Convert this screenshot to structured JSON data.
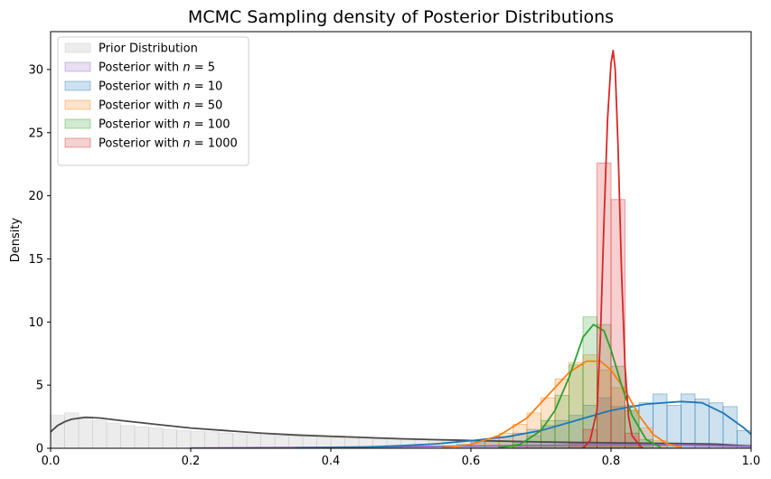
{
  "chart_data": {
    "type": "histogram",
    "title": "MCMC Sampling density of Posterior Distributions",
    "xlabel": "",
    "ylabel": "Density",
    "xlim": [
      0,
      1
    ],
    "ylim": [
      0,
      33
    ],
    "xticks": [
      0.0,
      0.2,
      0.4,
      0.6,
      0.8,
      1.0
    ],
    "xtick_labels": [
      "0.0",
      "0.2",
      "0.4",
      "0.6",
      "0.8",
      "1.0"
    ],
    "yticks": [
      0,
      5,
      10,
      15,
      20,
      25,
      30
    ],
    "ytick_labels": [
      "0",
      "5",
      "10",
      "15",
      "20",
      "25",
      "30"
    ],
    "grid": false,
    "legend_position": "top-left",
    "series": [
      {
        "name": "Prior Distribution",
        "color": "#c8c8c8",
        "kde_color": "#4a4a4a",
        "bins": [
          [
            0.0,
            0.02,
            2.6
          ],
          [
            0.02,
            0.04,
            2.8
          ],
          [
            0.04,
            0.06,
            2.5
          ],
          [
            0.06,
            0.08,
            2.2
          ],
          [
            0.08,
            0.1,
            2.0
          ],
          [
            0.1,
            0.12,
            1.8
          ],
          [
            0.12,
            0.14,
            1.7
          ],
          [
            0.14,
            0.16,
            1.6
          ],
          [
            0.16,
            0.18,
            1.5
          ],
          [
            0.18,
            0.2,
            1.4
          ],
          [
            0.2,
            0.22,
            1.35
          ],
          [
            0.22,
            0.24,
            1.3
          ],
          [
            0.24,
            0.26,
            1.2
          ],
          [
            0.26,
            0.28,
            1.15
          ],
          [
            0.28,
            0.3,
            1.1
          ],
          [
            0.3,
            0.32,
            1.05
          ],
          [
            0.32,
            0.34,
            1.0
          ],
          [
            0.34,
            0.36,
            0.95
          ],
          [
            0.36,
            0.38,
            0.9
          ],
          [
            0.38,
            0.4,
            0.88
          ],
          [
            0.4,
            0.42,
            0.85
          ],
          [
            0.42,
            0.44,
            0.8
          ],
          [
            0.44,
            0.46,
            0.78
          ],
          [
            0.46,
            0.48,
            0.75
          ],
          [
            0.48,
            0.5,
            0.72
          ],
          [
            0.5,
            0.52,
            0.7
          ],
          [
            0.52,
            0.54,
            0.68
          ],
          [
            0.54,
            0.56,
            0.65
          ],
          [
            0.56,
            0.58,
            0.62
          ],
          [
            0.58,
            0.6,
            0.6
          ],
          [
            0.6,
            0.62,
            0.58
          ],
          [
            0.62,
            0.64,
            0.56
          ],
          [
            0.64,
            0.66,
            0.54
          ],
          [
            0.66,
            0.68,
            0.52
          ],
          [
            0.68,
            0.7,
            0.5
          ],
          [
            0.7,
            0.72,
            0.48
          ],
          [
            0.72,
            0.74,
            0.47
          ],
          [
            0.74,
            0.76,
            0.46
          ],
          [
            0.76,
            0.78,
            0.45
          ],
          [
            0.78,
            0.8,
            0.44
          ],
          [
            0.8,
            0.82,
            0.43
          ],
          [
            0.82,
            0.84,
            0.42
          ],
          [
            0.84,
            0.86,
            0.41
          ],
          [
            0.86,
            0.88,
            0.4
          ],
          [
            0.88,
            0.9,
            0.39
          ],
          [
            0.9,
            0.92,
            0.38
          ],
          [
            0.92,
            0.94,
            0.37
          ],
          [
            0.94,
            0.96,
            0.36
          ],
          [
            0.96,
            0.98,
            0.35
          ],
          [
            0.98,
            1.0,
            0.3
          ]
        ],
        "kde": [
          [
            0.0,
            1.3
          ],
          [
            0.01,
            1.8
          ],
          [
            0.02,
            2.1
          ],
          [
            0.03,
            2.3
          ],
          [
            0.05,
            2.45
          ],
          [
            0.07,
            2.4
          ],
          [
            0.1,
            2.2
          ],
          [
            0.15,
            1.9
          ],
          [
            0.2,
            1.6
          ],
          [
            0.25,
            1.4
          ],
          [
            0.3,
            1.2
          ],
          [
            0.35,
            1.05
          ],
          [
            0.4,
            0.95
          ],
          [
            0.45,
            0.85
          ],
          [
            0.5,
            0.75
          ],
          [
            0.55,
            0.68
          ],
          [
            0.6,
            0.62
          ],
          [
            0.65,
            0.56
          ],
          [
            0.7,
            0.5
          ],
          [
            0.75,
            0.46
          ],
          [
            0.8,
            0.43
          ],
          [
            0.85,
            0.4
          ],
          [
            0.9,
            0.37
          ],
          [
            0.95,
            0.33
          ],
          [
            1.0,
            0.15
          ]
        ]
      },
      {
        "name": "Posterior with n = 5",
        "label_prefix": "Posterior with ",
        "label_var": "n",
        "label_suffix": " = 5",
        "color": "#9467bd",
        "kde_color": "#9467bd",
        "bins": [
          [
            0.2,
            0.3,
            0.05
          ],
          [
            0.3,
            0.4,
            0.08
          ],
          [
            0.4,
            0.5,
            0.1
          ],
          [
            0.5,
            0.6,
            0.15
          ],
          [
            0.6,
            0.7,
            0.2
          ],
          [
            0.7,
            0.8,
            0.25
          ],
          [
            0.8,
            0.9,
            0.3
          ],
          [
            0.9,
            1.0,
            0.25
          ]
        ],
        "kde": [
          [
            0.2,
            0.02
          ],
          [
            0.3,
            0.05
          ],
          [
            0.4,
            0.08
          ],
          [
            0.5,
            0.12
          ],
          [
            0.6,
            0.18
          ],
          [
            0.7,
            0.22
          ],
          [
            0.8,
            0.28
          ],
          [
            0.9,
            0.28
          ],
          [
            1.0,
            0.15
          ]
        ]
      },
      {
        "name": "Posterior with n = 10",
        "label_prefix": "Posterior with ",
        "label_var": "n",
        "label_suffix": " = 10",
        "color": "#1f77b4",
        "kde_color": "#1f77b4",
        "bins": [
          [
            0.58,
            0.6,
            0.3
          ],
          [
            0.6,
            0.62,
            0.5
          ],
          [
            0.62,
            0.64,
            0.6
          ],
          [
            0.64,
            0.66,
            0.9
          ],
          [
            0.66,
            0.68,
            1.2
          ],
          [
            0.68,
            0.7,
            1.5
          ],
          [
            0.7,
            0.72,
            1.8
          ],
          [
            0.72,
            0.74,
            2.2
          ],
          [
            0.74,
            0.76,
            2.6
          ],
          [
            0.76,
            0.78,
            3.4
          ],
          [
            0.78,
            0.8,
            4.0
          ],
          [
            0.8,
            0.82,
            3.3
          ],
          [
            0.82,
            0.84,
            3.4
          ],
          [
            0.84,
            0.86,
            3.6
          ],
          [
            0.86,
            0.88,
            4.3
          ],
          [
            0.88,
            0.9,
            3.4
          ],
          [
            0.9,
            0.92,
            4.3
          ],
          [
            0.92,
            0.94,
            3.9
          ],
          [
            0.94,
            0.96,
            3.6
          ],
          [
            0.96,
            0.98,
            3.3
          ],
          [
            0.98,
            1.0,
            1.4
          ]
        ],
        "kde": [
          [
            0.35,
            0.02
          ],
          [
            0.4,
            0.05
          ],
          [
            0.45,
            0.1
          ],
          [
            0.5,
            0.2
          ],
          [
            0.55,
            0.35
          ],
          [
            0.6,
            0.6
          ],
          [
            0.65,
            0.9
          ],
          [
            0.7,
            1.4
          ],
          [
            0.75,
            2.2
          ],
          [
            0.8,
            3.0
          ],
          [
            0.85,
            3.5
          ],
          [
            0.9,
            3.7
          ],
          [
            0.93,
            3.6
          ],
          [
            0.96,
            2.8
          ],
          [
            0.99,
            1.6
          ],
          [
            1.0,
            1.1
          ]
        ]
      },
      {
        "name": "Posterior with n = 50",
        "label_prefix": "Posterior with ",
        "label_var": "n",
        "label_suffix": " = 50",
        "color": "#ff7f0e",
        "kde_color": "#ff7f0e",
        "bins": [
          [
            0.6,
            0.62,
            0.4
          ],
          [
            0.62,
            0.64,
            0.7
          ],
          [
            0.64,
            0.66,
            1.2
          ],
          [
            0.66,
            0.68,
            1.9
          ],
          [
            0.68,
            0.7,
            2.8
          ],
          [
            0.7,
            0.72,
            4.0
          ],
          [
            0.72,
            0.74,
            5.5
          ],
          [
            0.74,
            0.76,
            6.8
          ],
          [
            0.76,
            0.78,
            7.4
          ],
          [
            0.78,
            0.8,
            6.2
          ],
          [
            0.8,
            0.82,
            4.8
          ],
          [
            0.82,
            0.84,
            3.0
          ],
          [
            0.84,
            0.86,
            1.6
          ],
          [
            0.86,
            0.88,
            0.6
          ]
        ],
        "kde": [
          [
            0.56,
            0.05
          ],
          [
            0.6,
            0.3
          ],
          [
            0.64,
            1.0
          ],
          [
            0.68,
            2.4
          ],
          [
            0.71,
            4.2
          ],
          [
            0.74,
            6.0
          ],
          [
            0.765,
            6.9
          ],
          [
            0.785,
            6.9
          ],
          [
            0.8,
            6.2
          ],
          [
            0.82,
            4.6
          ],
          [
            0.84,
            2.6
          ],
          [
            0.86,
            1.1
          ],
          [
            0.88,
            0.35
          ],
          [
            0.9,
            0.08
          ]
        ]
      },
      {
        "name": "Posterior with n = 100",
        "label_prefix": "Posterior with ",
        "label_var": "n",
        "label_suffix": " = 100",
        "color": "#2ca02c",
        "kde_color": "#2ca02c",
        "bins": [
          [
            0.66,
            0.68,
            0.5
          ],
          [
            0.68,
            0.7,
            1.0
          ],
          [
            0.7,
            0.72,
            2.2
          ],
          [
            0.72,
            0.74,
            4.2
          ],
          [
            0.74,
            0.76,
            6.6
          ],
          [
            0.76,
            0.78,
            10.4
          ],
          [
            0.78,
            0.8,
            9.8
          ],
          [
            0.8,
            0.82,
            6.5
          ],
          [
            0.82,
            0.84,
            3.0
          ],
          [
            0.84,
            0.86,
            0.7
          ]
        ],
        "kde": [
          [
            0.64,
            0.05
          ],
          [
            0.67,
            0.3
          ],
          [
            0.7,
            1.4
          ],
          [
            0.72,
            3.0
          ],
          [
            0.74,
            5.6
          ],
          [
            0.76,
            8.8
          ],
          [
            0.775,
            9.8
          ],
          [
            0.79,
            9.3
          ],
          [
            0.8,
            7.8
          ],
          [
            0.815,
            5.0
          ],
          [
            0.83,
            2.6
          ],
          [
            0.85,
            0.7
          ],
          [
            0.87,
            0.1
          ]
        ]
      },
      {
        "name": "Posterior with n = 1000",
        "label_prefix": "Posterior with ",
        "label_var": "n",
        "label_suffix": " = 1000",
        "color": "#d62728",
        "kde_color": "#d62728",
        "bins": [
          [
            0.74,
            0.76,
            0.4
          ],
          [
            0.76,
            0.78,
            1.5
          ],
          [
            0.78,
            0.8,
            22.6
          ],
          [
            0.8,
            0.82,
            19.7
          ],
          [
            0.82,
            0.84,
            1.2
          ]
        ],
        "kde": [
          [
            0.76,
            0.0
          ],
          [
            0.77,
            0.6
          ],
          [
            0.78,
            3.0
          ],
          [
            0.785,
            9.0
          ],
          [
            0.79,
            18.0
          ],
          [
            0.795,
            26.0
          ],
          [
            0.8,
            30.5
          ],
          [
            0.803,
            31.5
          ],
          [
            0.806,
            30.0
          ],
          [
            0.81,
            24.0
          ],
          [
            0.815,
            14.0
          ],
          [
            0.82,
            6.5
          ],
          [
            0.825,
            2.5
          ],
          [
            0.83,
            1.0
          ],
          [
            0.84,
            0.3
          ],
          [
            0.845,
            0.0
          ]
        ]
      }
    ]
  }
}
